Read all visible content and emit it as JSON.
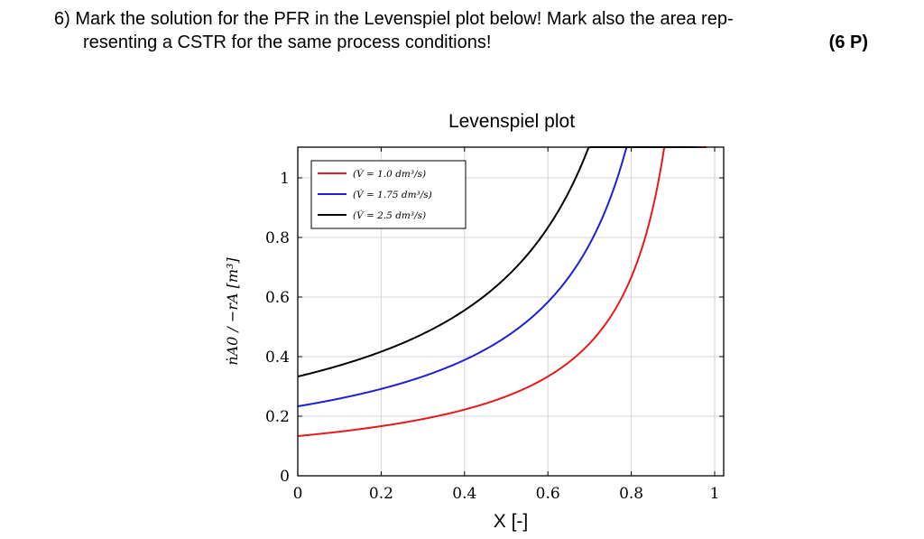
{
  "question": {
    "number": "6)",
    "line1": "Mark the solution for the PFR in the Levenspiel plot below! Mark also the area rep-",
    "line2": "resenting a CSTR for the same process conditions!",
    "points": "(6 P)"
  },
  "chart_data": {
    "type": "line",
    "title": "Levenspiel plot",
    "xlabel": "X [-]",
    "ylabel": "ṅA0 / −rA [m³]",
    "xlim": [
      0,
      1
    ],
    "ylim": [
      0,
      1.1
    ],
    "xticks": [
      "0",
      "0.2",
      "0.4",
      "0.6",
      "0.8",
      "1"
    ],
    "yticks": [
      "0",
      "0.2",
      "0.4",
      "0.6",
      "0.8",
      "1"
    ],
    "grid": true,
    "legend_position": "top-left",
    "series": [
      {
        "name": "(V̇ = 1.0 dm³/s)",
        "color": "#e41a1c",
        "a": 0.1333,
        "xmax": 0.98
      },
      {
        "name": "(V̇ = 1.75 dm³/s)",
        "color": "#1f1fd6",
        "a": 0.2333,
        "xmax": 0.962
      },
      {
        "name": "(V̇ = 2.5 dm³/s)",
        "color": "#000000",
        "a": 0.3333,
        "xmax": 0.946
      }
    ]
  }
}
